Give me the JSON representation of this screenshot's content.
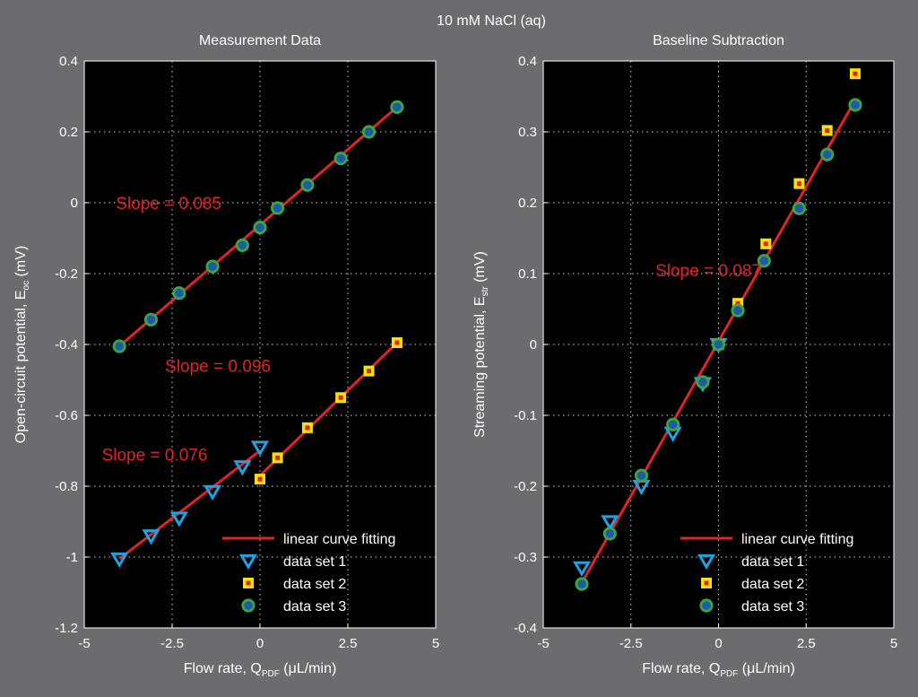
{
  "suptitle": "10 mM NaCl (aq)",
  "colors": {
    "background": "#6c6c6e",
    "plot_bg": "#000000",
    "fit_line": "#e32227",
    "set1_stroke": "#1ea3e0",
    "set2_fill": "#f5e20a",
    "set2_center": "#e32227",
    "set3_fill": "#1e5aa8",
    "set3_stroke": "#3aa640"
  },
  "legend": {
    "fit": "linear curve fitting",
    "set1": "data set 1",
    "set2": "data set 2",
    "set3": "data set 3"
  },
  "chart_data": [
    {
      "type": "scatter",
      "title": "Measurement Data",
      "xlabel": "Flow rate, Q",
      "xlabel_sub": "PDF",
      "xlabel_unit": " (μL/min)",
      "ylabel": "Open-circuit potential, E",
      "ylabel_sub": "oc",
      "ylabel_unit": " (mV)",
      "xlim": [
        -5,
        5
      ],
      "ylim": [
        -1.2,
        0.4
      ],
      "xticks": [
        -5,
        -2.5,
        0,
        2.5,
        5
      ],
      "xtick_labels": [
        "-5",
        "-2.5",
        "0",
        "2.5",
        "5"
      ],
      "yticks": [
        -1.2,
        -1,
        -0.8,
        -0.6,
        -0.4,
        -0.2,
        0,
        0.2,
        0.4
      ],
      "ytick_labels": [
        "-1.2",
        "-1",
        "-0.8",
        "-0.6",
        "-0.4",
        "-0.2",
        "0",
        "0.2",
        "0.4"
      ],
      "grid": true,
      "legend_position": "bottom-right",
      "fits": [
        {
          "x": [
            -4,
            3.9
          ],
          "y": [
            -0.405,
            0.27
          ]
        },
        {
          "x": [
            0,
            3.9
          ],
          "y": [
            -0.77,
            -0.395
          ]
        },
        {
          "x": [
            -4,
            0
          ],
          "y": [
            -1.005,
            -0.7
          ]
        }
      ],
      "annotations": [
        {
          "text": "Slope = 0.085",
          "x": -4.1,
          "y": 0.0
        },
        {
          "text": "Slope = 0.096",
          "x": -2.7,
          "y": -0.46
        },
        {
          "text": "Slope = 0.076",
          "x": -4.5,
          "y": -0.71
        }
      ],
      "series": [
        {
          "name": "data set 1",
          "marker": "triangle",
          "x": [
            -4,
            -3.1,
            -2.3,
            -1.35,
            -0.5,
            0
          ],
          "y": [
            -1.005,
            -0.94,
            -0.89,
            -0.815,
            -0.745,
            -0.69
          ]
        },
        {
          "name": "data set 2",
          "marker": "square",
          "x": [
            0,
            0.5,
            1.35,
            2.3,
            3.1,
            3.9
          ],
          "y": [
            -0.78,
            -0.72,
            -0.635,
            -0.55,
            -0.475,
            -0.395
          ]
        },
        {
          "name": "data set 3",
          "marker": "circle",
          "x": [
            -4,
            -3.1,
            -2.3,
            -1.35,
            -0.5,
            0,
            0.5,
            1.35,
            2.3,
            3.1,
            3.9
          ],
          "y": [
            -0.405,
            -0.33,
            -0.255,
            -0.18,
            -0.12,
            -0.07,
            -0.015,
            0.05,
            0.125,
            0.2,
            0.27
          ]
        }
      ]
    },
    {
      "type": "scatter",
      "title": "Baseline Subtraction",
      "xlabel": "Flow rate, Q",
      "xlabel_sub": "PDF",
      "xlabel_unit": " (μL/min)",
      "ylabel": "Streaming potential, E",
      "ylabel_sub": "str",
      "ylabel_unit": " (mV)",
      "xlim": [
        -5,
        5
      ],
      "ylim": [
        -0.4,
        0.4
      ],
      "xticks": [
        -5,
        -2.5,
        0,
        2.5,
        5
      ],
      "xtick_labels": [
        "-5",
        "-2.5",
        "0",
        "2.5",
        "5"
      ],
      "yticks": [
        -0.4,
        -0.3,
        -0.2,
        -0.1,
        0,
        0.1,
        0.2,
        0.3,
        0.4
      ],
      "ytick_labels": [
        "-0.4",
        "-0.3",
        "-0.2",
        "-0.1",
        "0",
        "0.1",
        "0.2",
        "0.3",
        "0.4"
      ],
      "grid": true,
      "legend_position": "bottom-right",
      "fits": [
        {
          "x": [
            -4,
            3.9
          ],
          "y": [
            -0.345,
            0.345
          ]
        }
      ],
      "annotations": [
        {
          "text": "Slope = 0.087",
          "x": -1.8,
          "y": 0.105
        }
      ],
      "series": [
        {
          "name": "data set 1",
          "marker": "triangle",
          "x": [
            -3.9,
            -3.1,
            -2.2,
            -1.3,
            -0.45,
            0
          ],
          "y": [
            -0.315,
            -0.25,
            -0.2,
            -0.125,
            -0.055,
            0
          ]
        },
        {
          "name": "data set 2",
          "marker": "square",
          "x": [
            0,
            0.55,
            1.35,
            2.3,
            3.1,
            3.9
          ],
          "y": [
            0,
            0.058,
            0.142,
            0.227,
            0.302,
            0.382
          ]
        },
        {
          "name": "data set 3",
          "marker": "circle",
          "x": [
            -3.9,
            -3.1,
            -2.2,
            -1.3,
            -0.45,
            0,
            0.55,
            1.3,
            2.3,
            3.1,
            3.9
          ],
          "y": [
            -0.338,
            -0.267,
            -0.185,
            -0.113,
            -0.053,
            0,
            0.048,
            0.118,
            0.192,
            0.268,
            0.338
          ]
        }
      ]
    }
  ]
}
